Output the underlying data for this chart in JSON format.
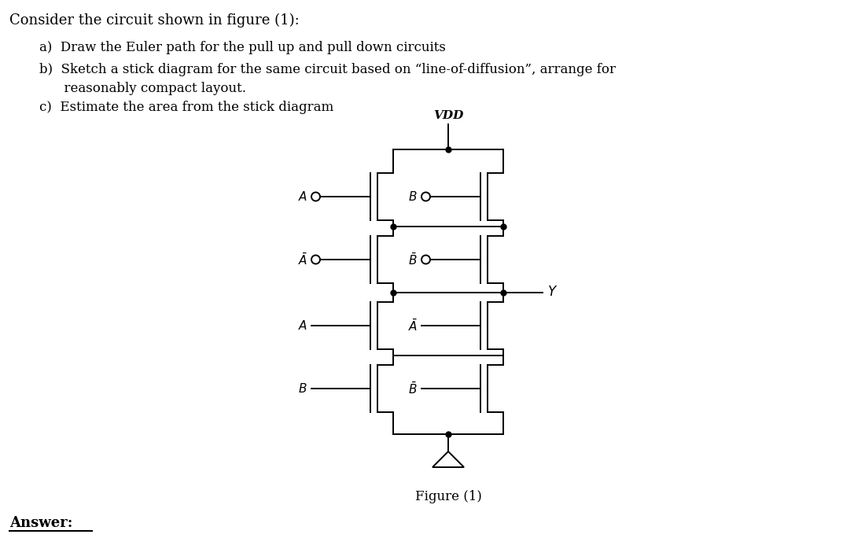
{
  "title_text": "Consider the circuit shown in figure (1):",
  "item_a": "a)  Draw the Euler path for the pull up and pull down circuits",
  "item_b1": "b)  Sketch a stick diagram for the same circuit based on “line-of-diffusion”, arrange for",
  "item_b2": "      reasonably compact layout.",
  "item_c": "c)  Estimate the area from the stick diagram",
  "figure_label": "Figure (1)",
  "answer_label": "Answer:",
  "vdd_label": "VDD",
  "bg_color": "#ffffff",
  "text_color": "#000000"
}
